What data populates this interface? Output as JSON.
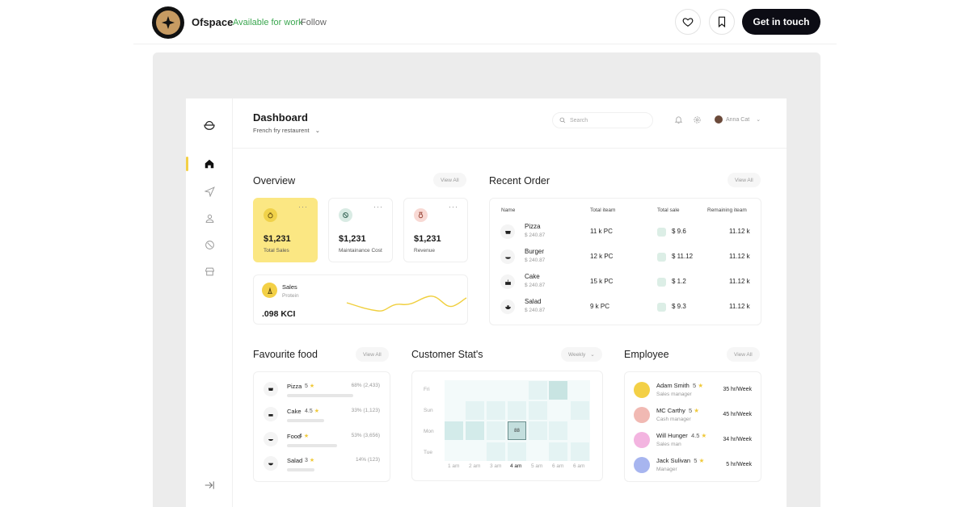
{
  "page": {
    "brand": "Ofspace",
    "availability": "Available for work",
    "follow": "Follow",
    "cta": "Get in touch",
    "accent": "#f3d046",
    "dark": "#0c0c14"
  },
  "dashboard": {
    "title": "Dashboard",
    "subtitle": "French fry restaurent",
    "search_placeholder": "Search",
    "user_name": "Anna Cat"
  },
  "overview": {
    "title": "Overview",
    "view_all": "View All",
    "cards": [
      {
        "value": "$1,231",
        "label": "Total Sales"
      },
      {
        "value": "$1,231",
        "label": "Maintainance Cost"
      },
      {
        "value": "$1,231",
        "label": "Revenue"
      }
    ],
    "sales": {
      "title": "Sales",
      "subtitle": "Protein",
      "value": ".098 KCI"
    }
  },
  "recent_order": {
    "title": "Recent Order",
    "view_all": "View All",
    "columns": [
      "Name",
      "Total iteam",
      "Total sale",
      "Remaining iteam"
    ],
    "rows": [
      {
        "name": "Pizza",
        "price": "$  240.87",
        "items": "11 k PC",
        "sale": "$ 9.6",
        "remaining": "11.12 k"
      },
      {
        "name": "Burger",
        "price": "$  240.87",
        "items": "12 k PC",
        "sale": "$ 11.12",
        "remaining": "11.12 k"
      },
      {
        "name": "Cake",
        "price": "$  240.87",
        "items": "15 k PC",
        "sale": "$ 1.2",
        "remaining": "11.12 k"
      },
      {
        "name": "Salad",
        "price": "$  240.87",
        "items": "9 k PC",
        "sale": "$ 9.3",
        "remaining": "11.12 k"
      }
    ]
  },
  "favourite_food": {
    "title": "Favourite food",
    "view_all": "View All",
    "items": [
      {
        "name": "Pizza",
        "rating": "5",
        "pct": "68% (2,433)",
        "fill": 0.68
      },
      {
        "name": "Cake",
        "rating": "4.5",
        "pct": "33% (1,123)",
        "fill": 0.33
      },
      {
        "name": "Food",
        "rating": "4",
        "pct": "53% (3,656)",
        "fill": 0.53
      },
      {
        "name": "Salad",
        "rating": "3",
        "pct": "14% (123)",
        "fill": 0.14
      }
    ]
  },
  "customer_stats": {
    "title": "Customer Stat's",
    "period": "Weekly",
    "days": [
      "Fri",
      "Sun",
      "Mon",
      "Tue"
    ],
    "hours": [
      "1 am",
      "2 am",
      "3 am",
      "4 am",
      "5 am",
      "6 am",
      "6 am"
    ],
    "highlight_value": "88"
  },
  "employee": {
    "title": "Employee",
    "view_all": "View All",
    "items": [
      {
        "name": "Adam Smith",
        "rating": "5",
        "role": "Sales manager",
        "hours": "35 hr/Week"
      },
      {
        "name": "MC Carthy",
        "rating": "5",
        "role": "Cash manager",
        "hours": "45 hr/Week"
      },
      {
        "name": "Will Hunger",
        "rating": "4.5",
        "role": "Sales man",
        "hours": "34 hr/Week"
      },
      {
        "name": "Jack Sulivan",
        "rating": "5",
        "role": "Manager",
        "hours": "5 hr/Week"
      }
    ]
  }
}
